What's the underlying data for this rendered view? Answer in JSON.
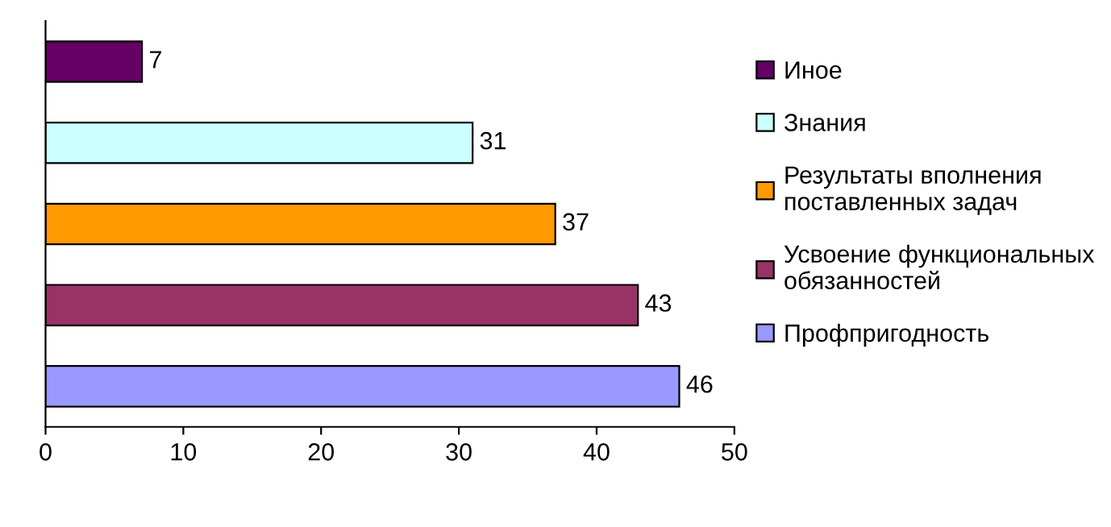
{
  "chart_data": {
    "type": "bar",
    "orientation": "horizontal",
    "categories": [
      null,
      null,
      null,
      null,
      null
    ],
    "series": [
      {
        "name": "Иное",
        "color": "#660066",
        "values": [
          7,
          null,
          null,
          null,
          null
        ]
      },
      {
        "name": "Знания",
        "color": "#ccffff",
        "values": [
          null,
          31,
          null,
          null,
          null
        ]
      },
      {
        "name": "Результаты вполнения\nпоставленных задач",
        "color": "#ff9900",
        "values": [
          null,
          null,
          37,
          null,
          null
        ]
      },
      {
        "name": "Усвоение функциональных\nобязанностей",
        "color": "#993366",
        "values": [
          null,
          null,
          null,
          43,
          null
        ]
      },
      {
        "name": "Профпригодность",
        "color": "#9999ff",
        "values": [
          null,
          null,
          null,
          null,
          46
        ]
      }
    ],
    "xlim": [
      0,
      50
    ],
    "xticks": [
      0,
      10,
      20,
      30,
      40,
      50
    ],
    "grid": false,
    "legend": "right",
    "data_labels": true
  }
}
